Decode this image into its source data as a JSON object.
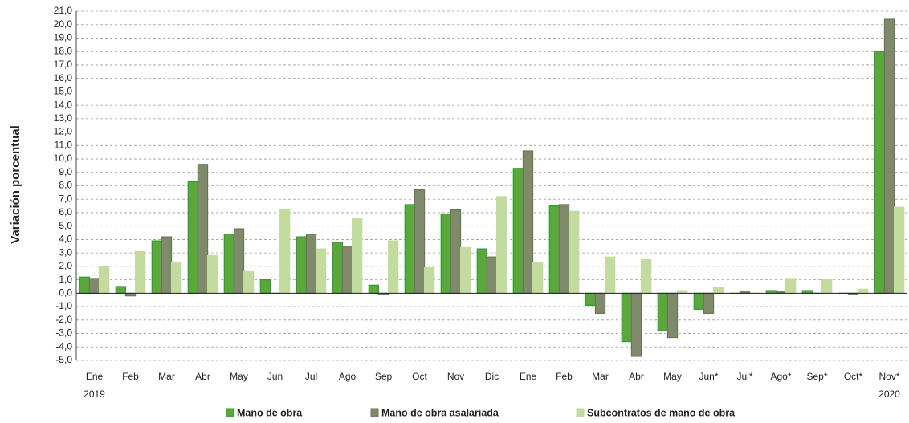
{
  "chart_data": {
    "type": "bar",
    "y_label": "Variación porcentual",
    "categories": [
      "Ene",
      "Feb",
      "Mar",
      "Abr",
      "May",
      "Jun",
      "Jul",
      "Ago",
      "Sep",
      "Oct",
      "Nov",
      "Dic",
      "Ene",
      "Feb",
      "Mar",
      "Abr",
      "May",
      "Jun*",
      "Jul*",
      "Ago*",
      "Sep*",
      "Oct*",
      "Nov*"
    ],
    "year_labels": [
      "2019",
      null,
      null,
      null,
      null,
      null,
      null,
      null,
      null,
      null,
      null,
      null,
      null,
      null,
      null,
      null,
      null,
      null,
      null,
      null,
      null,
      null,
      "2020"
    ],
    "series": [
      {
        "name": "Mano de obra",
        "color": "#5aa83c",
        "border": "#2e9e2e",
        "values": [
          1.2,
          0.5,
          3.9,
          8.3,
          4.4,
          1.0,
          4.2,
          3.8,
          0.6,
          6.6,
          5.9,
          3.3,
          9.3,
          6.5,
          -0.9,
          -3.6,
          -2.8,
          -1.2,
          0.0,
          0.2,
          0.2,
          0.0,
          18.0
        ]
      },
      {
        "name": "Mano de obra asalariada",
        "color": "#7f8a6a",
        "border": "#6b7558",
        "values": [
          1.1,
          -0.2,
          4.2,
          9.6,
          4.8,
          0.0,
          4.4,
          3.5,
          -0.1,
          7.7,
          6.2,
          2.7,
          10.6,
          6.6,
          -1.5,
          -4.7,
          -3.3,
          -1.5,
          0.1,
          0.1,
          0.0,
          -0.1,
          20.4
        ]
      },
      {
        "name": "Subcontratos de mano de obra",
        "color": "#c4dba0",
        "border": "#c4dba0",
        "values": [
          2.0,
          3.1,
          2.3,
          2.8,
          1.6,
          6.2,
          3.3,
          5.6,
          3.9,
          1.9,
          3.4,
          7.2,
          2.3,
          6.1,
          2.7,
          2.5,
          0.2,
          0.4,
          0.0,
          1.1,
          1.0,
          0.3,
          6.4
        ]
      }
    ],
    "ylim": [
      -5,
      21
    ],
    "yticks": [
      {
        "value": -5,
        "label": "-5,0"
      },
      {
        "value": -4,
        "label": "-4,0"
      },
      {
        "value": -3,
        "label": "-3,0"
      },
      {
        "value": -2,
        "label": "-2,0"
      },
      {
        "value": -1,
        "label": "-1,0"
      },
      {
        "value": 0,
        "label": "0,0"
      },
      {
        "value": 1,
        "label": "1,0"
      },
      {
        "value": 2,
        "label": "2,0"
      },
      {
        "value": 3,
        "label": "3,0"
      },
      {
        "value": 4,
        "label": "4,0"
      },
      {
        "value": 5,
        "label": "5,0"
      },
      {
        "value": 6,
        "label": "6,0"
      },
      {
        "value": 7,
        "label": "7,0"
      },
      {
        "value": 8,
        "label": "8,0"
      },
      {
        "value": 9,
        "label": "9,0"
      },
      {
        "value": 10,
        "label": "10,0"
      },
      {
        "value": 11,
        "label": "11,0"
      },
      {
        "value": 12,
        "label": "12,0"
      },
      {
        "value": 13,
        "label": "13,0"
      },
      {
        "value": 14,
        "label": "14,0"
      },
      {
        "value": 15,
        "label": "15,0"
      },
      {
        "value": 16,
        "label": "16,0"
      },
      {
        "value": 17,
        "label": "17,0"
      },
      {
        "value": 18,
        "label": "18,0"
      },
      {
        "value": 19,
        "label": "19,0"
      },
      {
        "value": 20,
        "label": "20,0"
      },
      {
        "value": 21,
        "label": "21,0"
      }
    ],
    "grid": true
  }
}
